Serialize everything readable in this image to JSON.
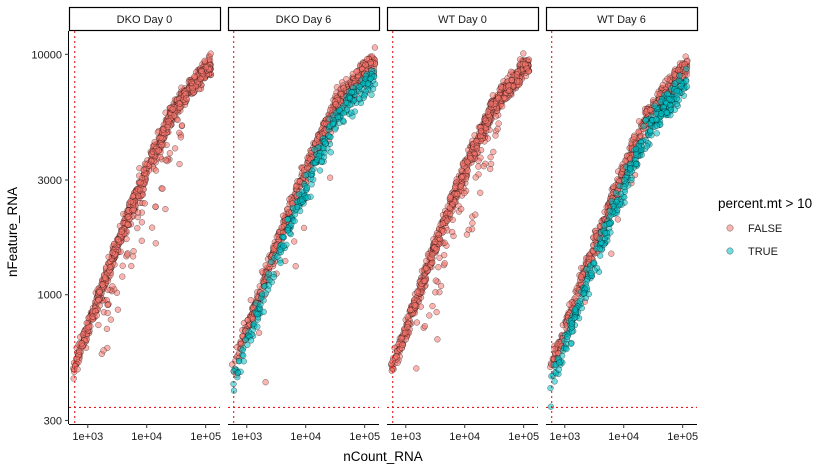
{
  "chart_data": {
    "type": "scatter",
    "title": "",
    "xlabel": "nCount_RNA",
    "ylabel": "nFeature_RNA",
    "x_scale": "log10",
    "y_scale": "log10",
    "xlim": [
      480,
      175000
    ],
    "ylim": [
      290,
      12500
    ],
    "x_ticks": [
      {
        "value": 1000,
        "label": "1e+03"
      },
      {
        "value": 10000,
        "label": "1e+04"
      },
      {
        "value": 100000,
        "label": "1e+05"
      }
    ],
    "y_ticks": [
      {
        "value": 300,
        "label": "300"
      },
      {
        "value": 1000,
        "label": "1000"
      },
      {
        "value": 3000,
        "label": "3000"
      },
      {
        "value": 10000,
        "label": "10000"
      }
    ],
    "thresholds": {
      "x": 600,
      "y": 340
    },
    "panels": [
      {
        "label": "DKO Day 0",
        "true_fraction": 0.0,
        "scatter_strength": 1.0
      },
      {
        "label": "DKO Day 6",
        "true_fraction": 0.35,
        "scatter_strength": 0.3
      },
      {
        "label": "WT Day 0",
        "true_fraction": 0.0,
        "scatter_strength": 1.0
      },
      {
        "label": "WT Day 6",
        "true_fraction": 0.4,
        "scatter_strength": 0.25
      }
    ],
    "trend": {
      "x": [
        550,
        1000,
        3000,
        10000,
        30000,
        100000,
        130000
      ],
      "y": [
        480,
        720,
        1550,
        3300,
        6000,
        8700,
        9100
      ]
    },
    "legend": {
      "title": "percent.mt > 10",
      "position": "right",
      "items": [
        {
          "label": "FALSE",
          "color": "#F8766D"
        },
        {
          "label": "TRUE",
          "color": "#00BFC4"
        }
      ]
    },
    "grid": false
  }
}
